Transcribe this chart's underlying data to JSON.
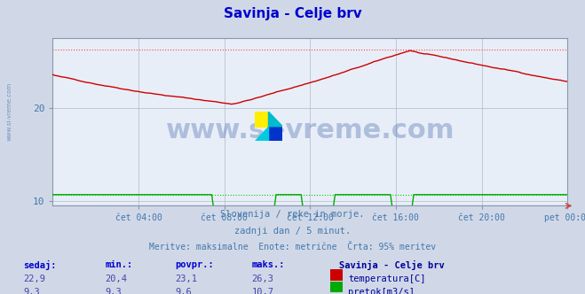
{
  "title": "Savinja - Celje brv",
  "title_color": "#0000cc",
  "bg_color": "#d0d8e8",
  "plot_bg_color": "#e8eef8",
  "grid_color": "#b0b8c8",
  "watermark_text": "www.si-vreme.com",
  "watermark_color": "#4466aa",
  "watermark_alpha": 0.35,
  "subtitle_lines": [
    "Slovenija / reke in morje.",
    "zadnji dan / 5 minut.",
    "Meritve: maksimalne  Enote: metrične  Črta: 95% meritev"
  ],
  "subtitle_color": "#4477aa",
  "x_tick_color": "#4477aa",
  "y_tick_color": "#4477aa",
  "xlim": [
    0,
    288
  ],
  "ylim": [
    9.5,
    27.5
  ],
  "yticks": [
    10,
    20
  ],
  "xtick_labels": [
    "čet 04:00",
    "čet 08:00",
    "čet 12:00",
    "čet 16:00",
    "čet 20:00",
    "pet 00:00"
  ],
  "xtick_positions": [
    48,
    96,
    144,
    192,
    240,
    288
  ],
  "temp_color": "#cc0000",
  "flow_color": "#00aa00",
  "height_color": "#0000bb",
  "temp_95pct": 26.3,
  "flow_95pct": 10.7,
  "temp_95pct_color": "#ff4444",
  "flow_95pct_color": "#00cc00",
  "legend_title": "Savinja - Celje brv",
  "legend_title_color": "#000099",
  "legend_color": "#000099",
  "table_headers": [
    "sedaj:",
    "min.:",
    "povpr.:",
    "maks.:"
  ],
  "table_header_color": "#0000cc",
  "table_values_temp": [
    "22,9",
    "20,4",
    "23,1",
    "26,3"
  ],
  "table_values_flow": [
    "9,3",
    "9,3",
    "9,6",
    "10,7"
  ],
  "table_value_color": "#4444aa",
  "legend_items": [
    "temperatura[C]",
    "pretok[m3/s]"
  ],
  "legend_item_colors": [
    "#cc0000",
    "#00aa00"
  ],
  "border_color": "#8899aa",
  "n_points": 289
}
